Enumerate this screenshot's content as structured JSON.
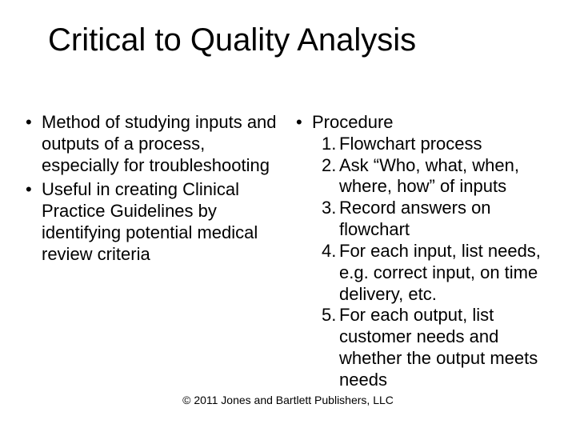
{
  "title": "Critical to Quality Analysis",
  "left_bullets": [
    "Method of studying inputs and outputs of a process, especially for troubleshooting",
    "Useful in creating Clinical Practice Guidelines by identifying potential medical review criteria"
  ],
  "right": {
    "heading": "Procedure",
    "steps": [
      "Flowchart process",
      "Ask “Who, what, when, where, how” of inputs",
      "Record answers on flowchart",
      "For each input, list needs, e.g. correct input, on time delivery, etc.",
      "For each output, list customer needs and whether the output meets needs"
    ]
  },
  "footer": "© 2011 Jones and Bartlett Publishers, LLC"
}
